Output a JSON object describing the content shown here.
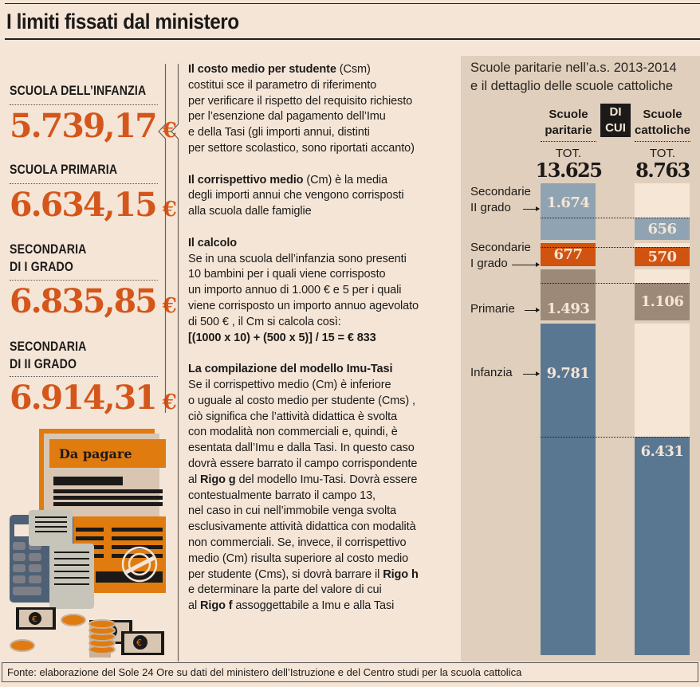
{
  "title": "I limiti fissati dal ministero",
  "limits": [
    {
      "category": "SCUOLA DELL’INFANZIA",
      "value": "5.739,17",
      "currency": "€"
    },
    {
      "category": "SCUOLA PRIMARIA",
      "value": "6.634,15",
      "currency": "€"
    },
    {
      "category": "SECONDARIA DI I GRADO",
      "category_lines": [
        "SECONDARIA",
        "DI I GRADO"
      ],
      "value": "6.835,85",
      "currency": "€"
    },
    {
      "category": "SECONDARIA DI II GRADO",
      "category_lines": [
        "SECONDARIA",
        "DI II GRADO"
      ],
      "value": "6.914,31",
      "currency": "€"
    }
  ],
  "illustration": {
    "label": "Da pagare"
  },
  "paragraphs": [
    [
      [
        {
          "t": "Il costo medio per studente",
          "b": true
        },
        {
          "t": " (Csm)"
        }
      ],
      [
        {
          "t": "costitui sce il parametro di riferimento"
        }
      ],
      [
        {
          "t": "per verificare il rispetto del requisito richiesto"
        }
      ],
      [
        {
          "t": "per l’esenzione dal pagamento dell’Imu"
        }
      ],
      [
        {
          "t": "e della Tasi (gli importi annui, distinti"
        }
      ],
      [
        {
          "t": "per settore scolastico, sono riportati accanto)"
        }
      ]
    ],
    [
      [
        {
          "t": "Il corrispettivo medio",
          "b": true
        },
        {
          "t": " (Cm) è la media"
        }
      ],
      [
        {
          "t": "degli importi annui che vengono corrisposti"
        }
      ],
      [
        {
          "t": "alla scuola dalle famiglie"
        }
      ]
    ],
    [
      [
        {
          "t": "Il calcolo",
          "b": true
        }
      ],
      [
        {
          "t": "Se in una scuola dell’infanzia sono presenti"
        }
      ],
      [
        {
          "t": "10 bambini per i quali viene corrisposto"
        }
      ],
      [
        {
          "t": "un importo annuo di 1.000 € e 5 per i quali"
        }
      ],
      [
        {
          "t": "viene corrisposto un importo annuo agevolato"
        }
      ],
      [
        {
          "t": "di 500 € , il Cm si calcola così:"
        }
      ],
      [
        {
          "t": "[(1000 x 10) + (500 x 5)] / 15 = € 833",
          "b": true
        }
      ]
    ],
    [
      [
        {
          "t": "La compilazione del modello Imu-Tasi",
          "b": true
        }
      ],
      [
        {
          "t": "Se il corrispettivo medio (Cm) è inferiore"
        }
      ],
      [
        {
          "t": "o uguale al costo medio per studente (Cms) ,"
        }
      ],
      [
        {
          "t": " ciò significa che l’attività didattica è svolta"
        }
      ],
      [
        {
          "t": "con modalità non commerciali e, quindi, è"
        }
      ],
      [
        {
          "t": "esentata dall’Imu e dalla Tasi. In questo caso"
        }
      ],
      [
        {
          "t": "dovrà essere barrato il campo corrispondente"
        }
      ],
      [
        {
          "t": "al "
        },
        {
          "t": "Rigo g",
          "b": true
        },
        {
          "t": " del modello Imu-Tasi. Dovrà essere"
        }
      ],
      [
        {
          "t": "contestualmente barrato il campo 13,"
        }
      ],
      [
        {
          "t": "nel caso in cui nell’immobile venga svolta"
        }
      ],
      [
        {
          "t": "esclusivamente attività didattica con modalità"
        }
      ],
      [
        {
          "t": "non commerciali. Se, invece, il corrispettivo"
        }
      ],
      [
        {
          "t": "medio (Cm) risulta superiore al costo medio"
        }
      ],
      [
        {
          "t": "per studente (Cms), si dovrà barrare il  "
        },
        {
          "t": "Rigo h",
          "b": true
        }
      ],
      [
        {
          "t": "e determinare la parte del valore di cui"
        }
      ],
      [
        {
          "t": "al "
        },
        {
          "t": "Rigo f",
          "b": true
        },
        {
          "t": " assoggettabile a Imu e alla Tasi"
        }
      ]
    ]
  ],
  "chart_data": {
    "type": "bar",
    "stacked": true,
    "title": "Scuole paritarie nell’a.s. 2013-2014 e il dettaglio delle scuole cattoliche",
    "title_lines": [
      "Scuole paritarie nell’a.s. 2013-2014",
      "e il dettaglio delle scuole cattoliche"
    ],
    "connector": "DI CUI",
    "connector_lines": [
      "DI",
      "CUI"
    ],
    "total_label": "TOT.",
    "columns": [
      {
        "name": "Scuole paritarie",
        "name_lines": [
          "Scuole",
          "paritarie"
        ],
        "total": "13.625"
      },
      {
        "name": "Scuole cattoliche",
        "name_lines": [
          "Scuole",
          "cattoliche"
        ],
        "total": "8.763"
      }
    ],
    "categories": [
      "Secondarie II grado",
      "Secondarie I grado",
      "Primarie",
      "Infanzia"
    ],
    "category_lines": [
      [
        "Secondarie",
        "II grado"
      ],
      [
        "Secondarie",
        "I grado"
      ],
      [
        "Primarie"
      ],
      [
        "Infanzia"
      ]
    ],
    "series": [
      {
        "name": "Scuole paritarie",
        "values": [
          1674,
          677,
          1493,
          9781
        ],
        "labels": [
          "1.674",
          "677",
          "1.493",
          "9.781"
        ]
      },
      {
        "name": "Scuole cattoliche",
        "values": [
          656,
          570,
          1106,
          6431
        ],
        "labels": [
          "656",
          "570",
          "1.106",
          "6.431"
        ]
      }
    ],
    "colors": [
      "#8fa3b2",
      "#d0530f",
      "#9c8978",
      "#5a7792"
    ]
  },
  "footer": "Fonte: elaborazione del Sole 24 Ore su dati del ministero dell’Istruzione e del Centro studi per la scuola cattolica"
}
